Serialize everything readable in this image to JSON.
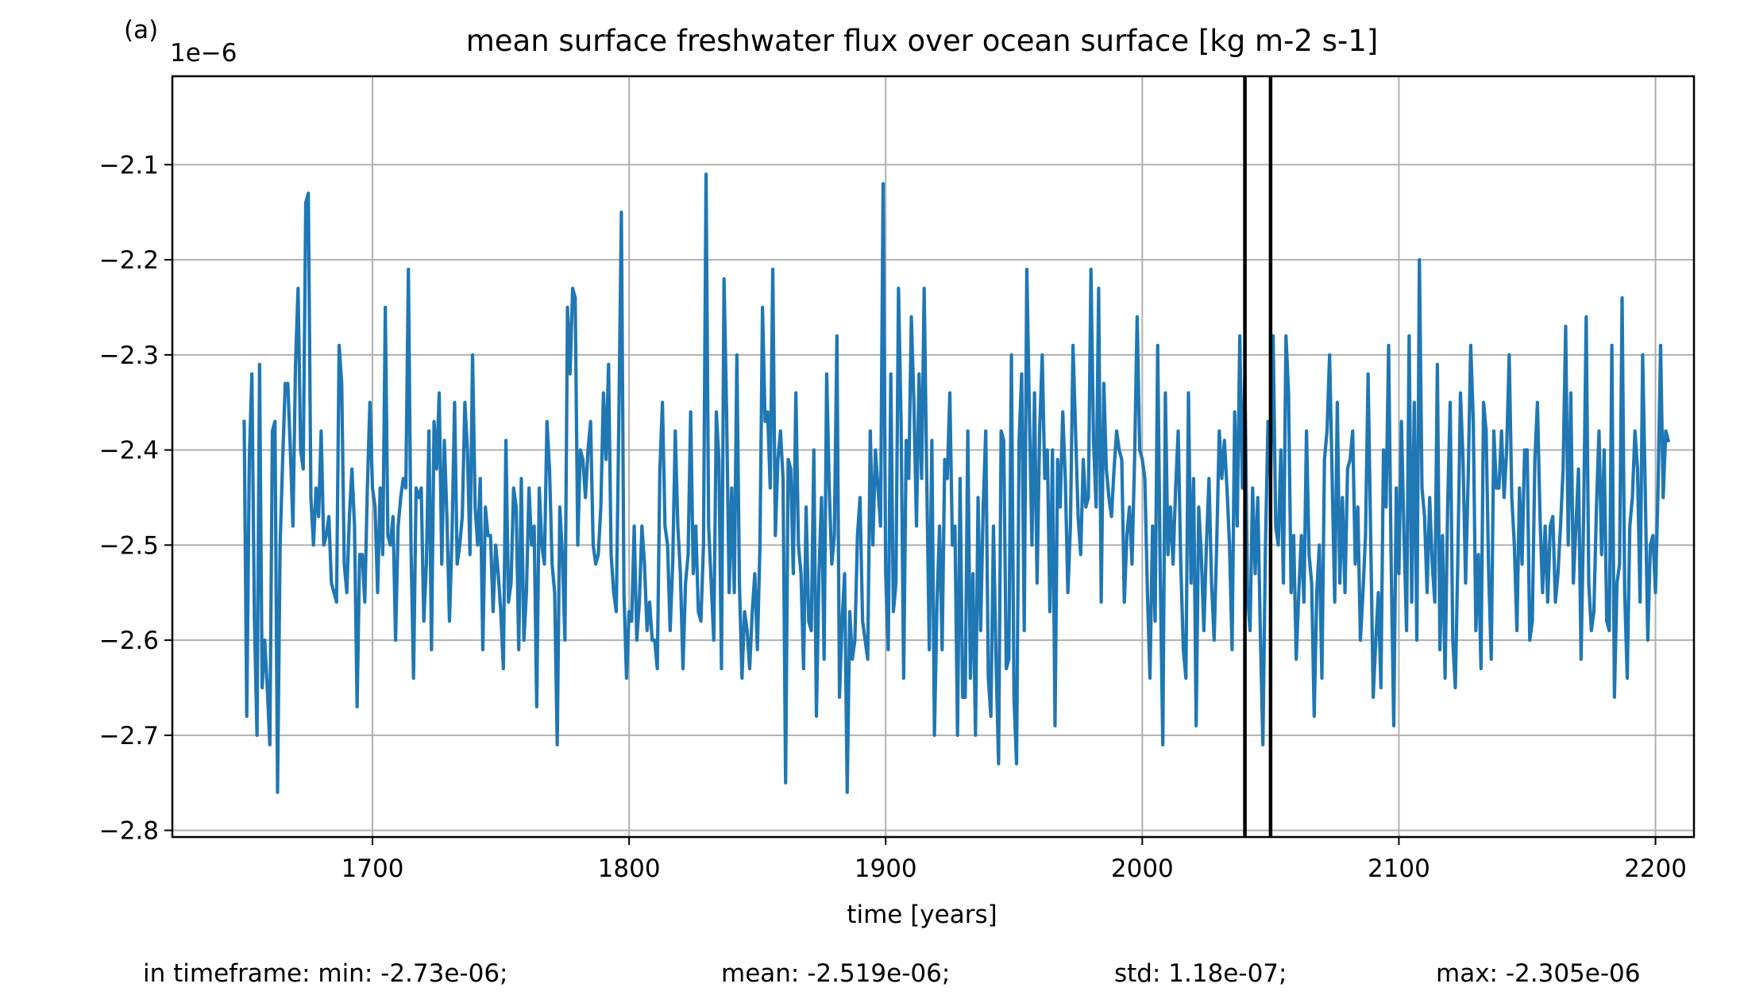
{
  "panel_label": "(a)",
  "stats": {
    "min": "in timeframe: min: -2.73e-06;",
    "mean": "mean: -2.519e-06;",
    "std": "std: 1.18e-07;",
    "max": "max: -2.305e-06"
  },
  "chart_data": {
    "type": "line",
    "title": "mean surface freshwater flux over ocean surface [kg m-2 s-1]",
    "xlabel": "time [years]",
    "ylabel": "",
    "offset_text": "1e−6",
    "y_multiplier": 1e-06,
    "xlim": [
      1622,
      2215
    ],
    "ylim": [
      -2.807,
      -2.007
    ],
    "x_ticks": [
      1700,
      1800,
      1900,
      2000,
      2100,
      2200
    ],
    "y_ticks": [
      -2.1,
      -2.2,
      -2.3,
      -2.4,
      -2.5,
      -2.6,
      -2.7,
      -2.8
    ],
    "y_tick_labels": [
      "−2.1",
      "−2.2",
      "−2.3",
      "−2.4",
      "−2.5",
      "−2.6",
      "−2.7",
      "−2.8"
    ],
    "grid": true,
    "vlines": [
      2040,
      2050
    ],
    "colors": {
      "series": "#1f77b4",
      "grid": "#b0b0b0",
      "vlines": "#000000"
    },
    "series": [
      {
        "x_start": 1650,
        "x_step": 1,
        "values": [
          -2.37,
          -2.68,
          -2.41,
          -2.32,
          -2.58,
          -2.7,
          -2.31,
          -2.65,
          -2.6,
          -2.65,
          -2.71,
          -2.38,
          -2.37,
          -2.76,
          -2.5,
          -2.41,
          -2.33,
          -2.33,
          -2.4,
          -2.48,
          -2.31,
          -2.23,
          -2.4,
          -2.42,
          -2.14,
          -2.13,
          -2.45,
          -2.5,
          -2.44,
          -2.47,
          -2.38,
          -2.5,
          -2.49,
          -2.47,
          -2.54,
          -2.55,
          -2.56,
          -2.29,
          -2.33,
          -2.52,
          -2.55,
          -2.47,
          -2.42,
          -2.48,
          -2.67,
          -2.51,
          -2.51,
          -2.56,
          -2.44,
          -2.35,
          -2.44,
          -2.46,
          -2.55,
          -2.44,
          -2.51,
          -2.25,
          -2.49,
          -2.5,
          -2.47,
          -2.6,
          -2.48,
          -2.45,
          -2.43,
          -2.44,
          -2.21,
          -2.5,
          -2.64,
          -2.44,
          -2.45,
          -2.44,
          -2.58,
          -2.52,
          -2.38,
          -2.61,
          -2.37,
          -2.42,
          -2.34,
          -2.52,
          -2.39,
          -2.47,
          -2.58,
          -2.49,
          -2.35,
          -2.52,
          -2.5,
          -2.47,
          -2.35,
          -2.4,
          -2.51,
          -2.3,
          -2.46,
          -2.5,
          -2.43,
          -2.61,
          -2.46,
          -2.49,
          -2.49,
          -2.57,
          -2.5,
          -2.53,
          -2.57,
          -2.63,
          -2.39,
          -2.56,
          -2.54,
          -2.44,
          -2.46,
          -2.61,
          -2.43,
          -2.6,
          -2.55,
          -2.44,
          -2.5,
          -2.48,
          -2.67,
          -2.44,
          -2.5,
          -2.52,
          -2.37,
          -2.42,
          -2.52,
          -2.55,
          -2.71,
          -2.46,
          -2.51,
          -2.6,
          -2.25,
          -2.32,
          -2.23,
          -2.24,
          -2.5,
          -2.4,
          -2.41,
          -2.45,
          -2.4,
          -2.37,
          -2.5,
          -2.52,
          -2.51,
          -2.46,
          -2.34,
          -2.41,
          -2.31,
          -2.51,
          -2.55,
          -2.57,
          -2.37,
          -2.15,
          -2.55,
          -2.64,
          -2.57,
          -2.58,
          -2.48,
          -2.6,
          -2.56,
          -2.48,
          -2.52,
          -2.59,
          -2.56,
          -2.6,
          -2.6,
          -2.63,
          -2.42,
          -2.35,
          -2.48,
          -2.5,
          -2.59,
          -2.52,
          -2.38,
          -2.48,
          -2.53,
          -2.63,
          -2.54,
          -2.51,
          -2.36,
          -2.53,
          -2.48,
          -2.57,
          -2.58,
          -2.5,
          -2.11,
          -2.48,
          -2.54,
          -2.6,
          -2.36,
          -2.41,
          -2.63,
          -2.22,
          -2.36,
          -2.55,
          -2.44,
          -2.55,
          -2.3,
          -2.54,
          -2.64,
          -2.57,
          -2.59,
          -2.63,
          -2.57,
          -2.53,
          -2.61,
          -2.5,
          -2.25,
          -2.37,
          -2.36,
          -2.44,
          -2.21,
          -2.49,
          -2.41,
          -2.38,
          -2.43,
          -2.75,
          -2.41,
          -2.42,
          -2.53,
          -2.34,
          -2.5,
          -2.53,
          -2.63,
          -2.46,
          -2.58,
          -2.59,
          -2.4,
          -2.68,
          -2.53,
          -2.45,
          -2.62,
          -2.32,
          -2.44,
          -2.52,
          -2.49,
          -2.28,
          -2.66,
          -2.58,
          -2.53,
          -2.76,
          -2.57,
          -2.62,
          -2.6,
          -2.49,
          -2.45,
          -2.58,
          -2.6,
          -2.62,
          -2.38,
          -2.5,
          -2.4,
          -2.44,
          -2.48,
          -2.12,
          -2.53,
          -2.61,
          -2.32,
          -2.57,
          -2.54,
          -2.23,
          -2.37,
          -2.64,
          -2.39,
          -2.43,
          -2.26,
          -2.35,
          -2.48,
          -2.32,
          -2.43,
          -2.23,
          -2.43,
          -2.61,
          -2.39,
          -2.7,
          -2.56,
          -2.48,
          -2.61,
          -2.41,
          -2.43,
          -2.34,
          -2.5,
          -2.48,
          -2.7,
          -2.43,
          -2.66,
          -2.66,
          -2.38,
          -2.64,
          -2.53,
          -2.7,
          -2.45,
          -2.59,
          -2.46,
          -2.38,
          -2.64,
          -2.68,
          -2.48,
          -2.62,
          -2.73,
          -2.38,
          -2.39,
          -2.63,
          -2.62,
          -2.3,
          -2.66,
          -2.73,
          -2.39,
          -2.32,
          -2.59,
          -2.21,
          -2.36,
          -2.5,
          -2.34,
          -2.54,
          -2.38,
          -2.3,
          -2.43,
          -2.4,
          -2.57,
          -2.4,
          -2.69,
          -2.41,
          -2.46,
          -2.36,
          -2.43,
          -2.55,
          -2.48,
          -2.29,
          -2.38,
          -2.47,
          -2.51,
          -2.41,
          -2.46,
          -2.45,
          -2.21,
          -2.39,
          -2.46,
          -2.23,
          -2.56,
          -2.33,
          -2.42,
          -2.45,
          -2.47,
          -2.42,
          -2.38,
          -2.4,
          -2.41,
          -2.56,
          -2.49,
          -2.46,
          -2.52,
          -2.41,
          -2.26,
          -2.4,
          -2.41,
          -2.43,
          -2.55,
          -2.64,
          -2.48,
          -2.58,
          -2.29,
          -2.53,
          -2.71,
          -2.34,
          -2.51,
          -2.46,
          -2.52,
          -2.44,
          -2.38,
          -2.52,
          -2.61,
          -2.64,
          -2.34,
          -2.54,
          -2.43,
          -2.69,
          -2.46,
          -2.51,
          -2.59,
          -2.5,
          -2.43,
          -2.54,
          -2.6,
          -2.5,
          -2.38,
          -2.43,
          -2.39,
          -2.44,
          -2.5,
          -2.61,
          -2.36,
          -2.48,
          -2.28,
          -2.44,
          -2.32,
          -2.55,
          -2.59,
          -2.44,
          -2.53,
          -2.45,
          -2.59,
          -2.71,
          -2.5,
          -2.37,
          -2.43,
          -2.28,
          -2.48,
          -2.5,
          -2.4,
          -2.54,
          -2.28,
          -2.34,
          -2.55,
          -2.49,
          -2.62,
          -2.55,
          -2.49,
          -2.56,
          -2.38,
          -2.51,
          -2.54,
          -2.68,
          -2.55,
          -2.5,
          -2.64,
          -2.41,
          -2.38,
          -2.3,
          -2.43,
          -2.56,
          -2.35,
          -2.54,
          -2.45,
          -2.55,
          -2.42,
          -2.41,
          -2.38,
          -2.52,
          -2.46,
          -2.6,
          -2.55,
          -2.49,
          -2.32,
          -2.49,
          -2.66,
          -2.6,
          -2.55,
          -2.65,
          -2.4,
          -2.46,
          -2.29,
          -2.52,
          -2.69,
          -2.44,
          -2.53,
          -2.37,
          -2.49,
          -2.59,
          -2.28,
          -2.56,
          -2.35,
          -2.6,
          -2.2,
          -2.44,
          -2.47,
          -2.55,
          -2.45,
          -2.52,
          -2.56,
          -2.31,
          -2.61,
          -2.49,
          -2.64,
          -2.46,
          -2.35,
          -2.6,
          -2.65,
          -2.51,
          -2.34,
          -2.41,
          -2.54,
          -2.43,
          -2.29,
          -2.37,
          -2.59,
          -2.51,
          -2.63,
          -2.35,
          -2.38,
          -2.53,
          -2.62,
          -2.38,
          -2.44,
          -2.44,
          -2.38,
          -2.45,
          -2.4,
          -2.3,
          -2.45,
          -2.5,
          -2.59,
          -2.44,
          -2.52,
          -2.4,
          -2.4,
          -2.6,
          -2.58,
          -2.41,
          -2.35,
          -2.47,
          -2.55,
          -2.48,
          -2.56,
          -2.48,
          -2.47,
          -2.56,
          -2.53,
          -2.48,
          -2.42,
          -2.27,
          -2.5,
          -2.34,
          -2.54,
          -2.48,
          -2.42,
          -2.62,
          -2.47,
          -2.26,
          -2.54,
          -2.59,
          -2.57,
          -2.46,
          -2.38,
          -2.51,
          -2.4,
          -2.58,
          -2.59,
          -2.29,
          -2.66,
          -2.54,
          -2.52,
          -2.24,
          -2.55,
          -2.64,
          -2.48,
          -2.45,
          -2.38,
          -2.42,
          -2.56,
          -2.3,
          -2.44,
          -2.6,
          -2.5,
          -2.49,
          -2.55,
          -2.44,
          -2.29,
          -2.45,
          -2.38,
          -2.39
        ]
      }
    ]
  }
}
